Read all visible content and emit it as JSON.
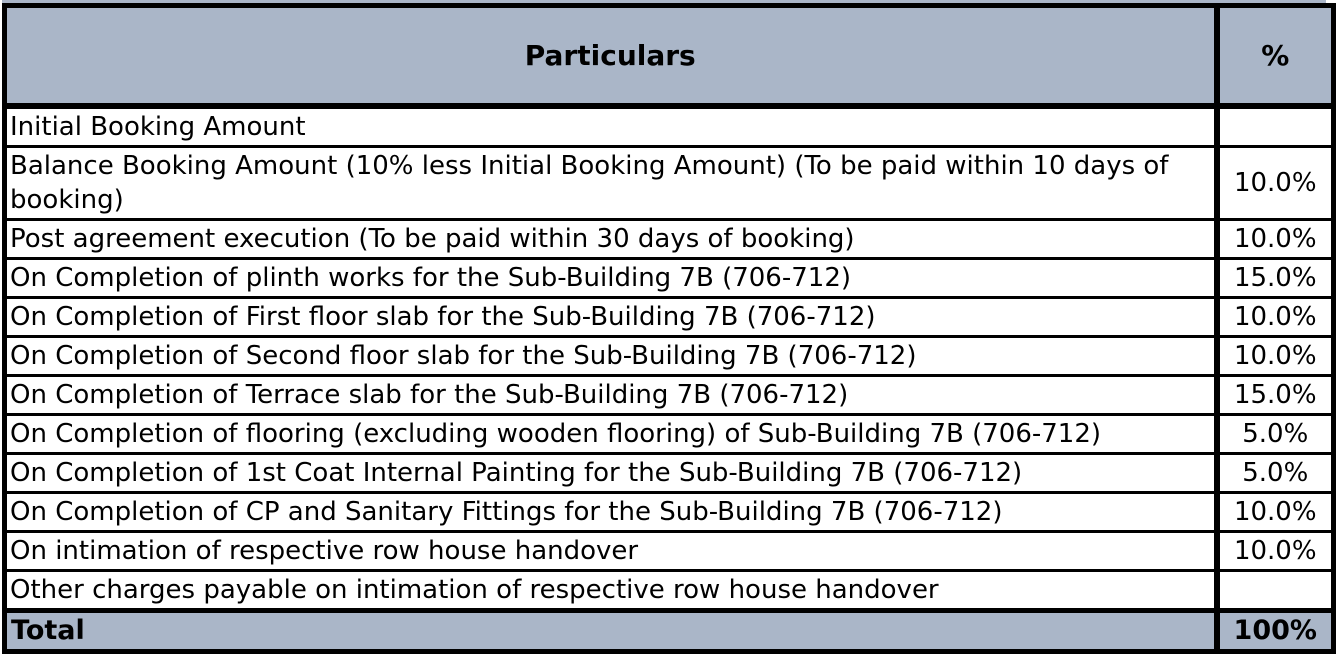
{
  "colors": {
    "border": "#000000",
    "header_bg": "#aab6c8",
    "row_bg": "#ffffff"
  },
  "table": {
    "header": {
      "particulars": "Particulars",
      "percent": "%"
    },
    "rows": [
      {
        "particulars": "Initial Booking Amount",
        "percent": ""
      },
      {
        "particulars": "Balance Booking Amount (10% less Initial Booking Amount) (To be paid within 10 days of booking)",
        "percent": "10.0%"
      },
      {
        "particulars": "Post agreement execution (To be paid within 30 days of booking)",
        "percent": "10.0%"
      },
      {
        "particulars": "On Completion of plinth works for the Sub-Building 7B (706-712)",
        "percent": "15.0%"
      },
      {
        "particulars": "On Completion of First floor slab for the Sub-Building 7B (706-712)",
        "percent": "10.0%"
      },
      {
        "particulars": "On Completion of Second floor slab for the Sub-Building 7B (706-712)",
        "percent": "10.0%"
      },
      {
        "particulars": "On Completion of Terrace slab for the Sub-Building 7B (706-712)",
        "percent": "15.0%"
      },
      {
        "particulars": "On Completion of flooring (excluding wooden flooring) of Sub-Building 7B (706-712)",
        "percent": "5.0%"
      },
      {
        "particulars": "On Completion of 1st Coat Internal Painting for the Sub-Building  7B (706-712)",
        "percent": "5.0%"
      },
      {
        "particulars": "On Completion of CP and Sanitary Fittings for the Sub-Building 7B (706-712)",
        "percent": "10.0%"
      },
      {
        "particulars": "On intimation of respective row house handover",
        "percent": "10.0%"
      },
      {
        "particulars": "Other charges payable on intimation of respective row house handover",
        "percent": ""
      }
    ],
    "footer": {
      "label": "Total",
      "percent": "100%"
    }
  }
}
